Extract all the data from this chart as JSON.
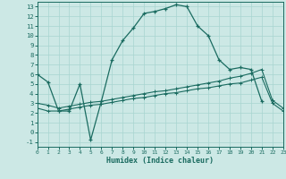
{
  "bg_color": "#cce8e5",
  "line_color": "#1a6b60",
  "grid_color": "#a8d5d0",
  "xlabel": "Humidex (Indice chaleur)",
  "xlim": [
    0,
    23
  ],
  "ylim": [
    -1.5,
    13.5
  ],
  "xticks": [
    0,
    1,
    2,
    3,
    4,
    5,
    6,
    7,
    8,
    9,
    10,
    11,
    12,
    13,
    14,
    15,
    16,
    17,
    18,
    19,
    20,
    21,
    22,
    23
  ],
  "yticks": [
    -1,
    0,
    1,
    2,
    3,
    4,
    5,
    6,
    7,
    8,
    9,
    10,
    11,
    12,
    13
  ],
  "curve_main_x": [
    0,
    1,
    2,
    3,
    4,
    5,
    6,
    7,
    8,
    9,
    10,
    11,
    12,
    13,
    14,
    15,
    16,
    17,
    18,
    19,
    20,
    21
  ],
  "curve_main_y": [
    6.0,
    5.2,
    2.2,
    2.2,
    5.0,
    -0.8,
    3.2,
    7.5,
    9.5,
    10.8,
    12.3,
    12.5,
    12.8,
    13.2,
    13.0,
    11.0,
    10.0,
    7.5,
    6.5,
    6.7,
    6.5,
    3.2
  ],
  "curve_band1_x": [
    0,
    1,
    2,
    3,
    4,
    5,
    6,
    7,
    8,
    9,
    10,
    11,
    12,
    13,
    14,
    15,
    16,
    17,
    18,
    19,
    20,
    21,
    22,
    23
  ],
  "curve_band1_y": [
    2.5,
    2.2,
    2.2,
    2.4,
    2.6,
    2.8,
    2.9,
    3.1,
    3.3,
    3.5,
    3.6,
    3.8,
    4.0,
    4.1,
    4.3,
    4.5,
    4.6,
    4.8,
    5.0,
    5.1,
    5.4,
    5.7,
    3.0,
    2.2
  ],
  "curve_band2_x": [
    0,
    1,
    2,
    3,
    4,
    5,
    6,
    7,
    8,
    9,
    10,
    11,
    12,
    13,
    14,
    15,
    16,
    17,
    18,
    19,
    20,
    21,
    22,
    23
  ],
  "curve_band2_y": [
    3.0,
    2.8,
    2.5,
    2.7,
    2.9,
    3.1,
    3.2,
    3.4,
    3.6,
    3.8,
    4.0,
    4.2,
    4.3,
    4.5,
    4.7,
    4.9,
    5.1,
    5.3,
    5.6,
    5.8,
    6.1,
    6.5,
    3.3,
    2.5
  ]
}
